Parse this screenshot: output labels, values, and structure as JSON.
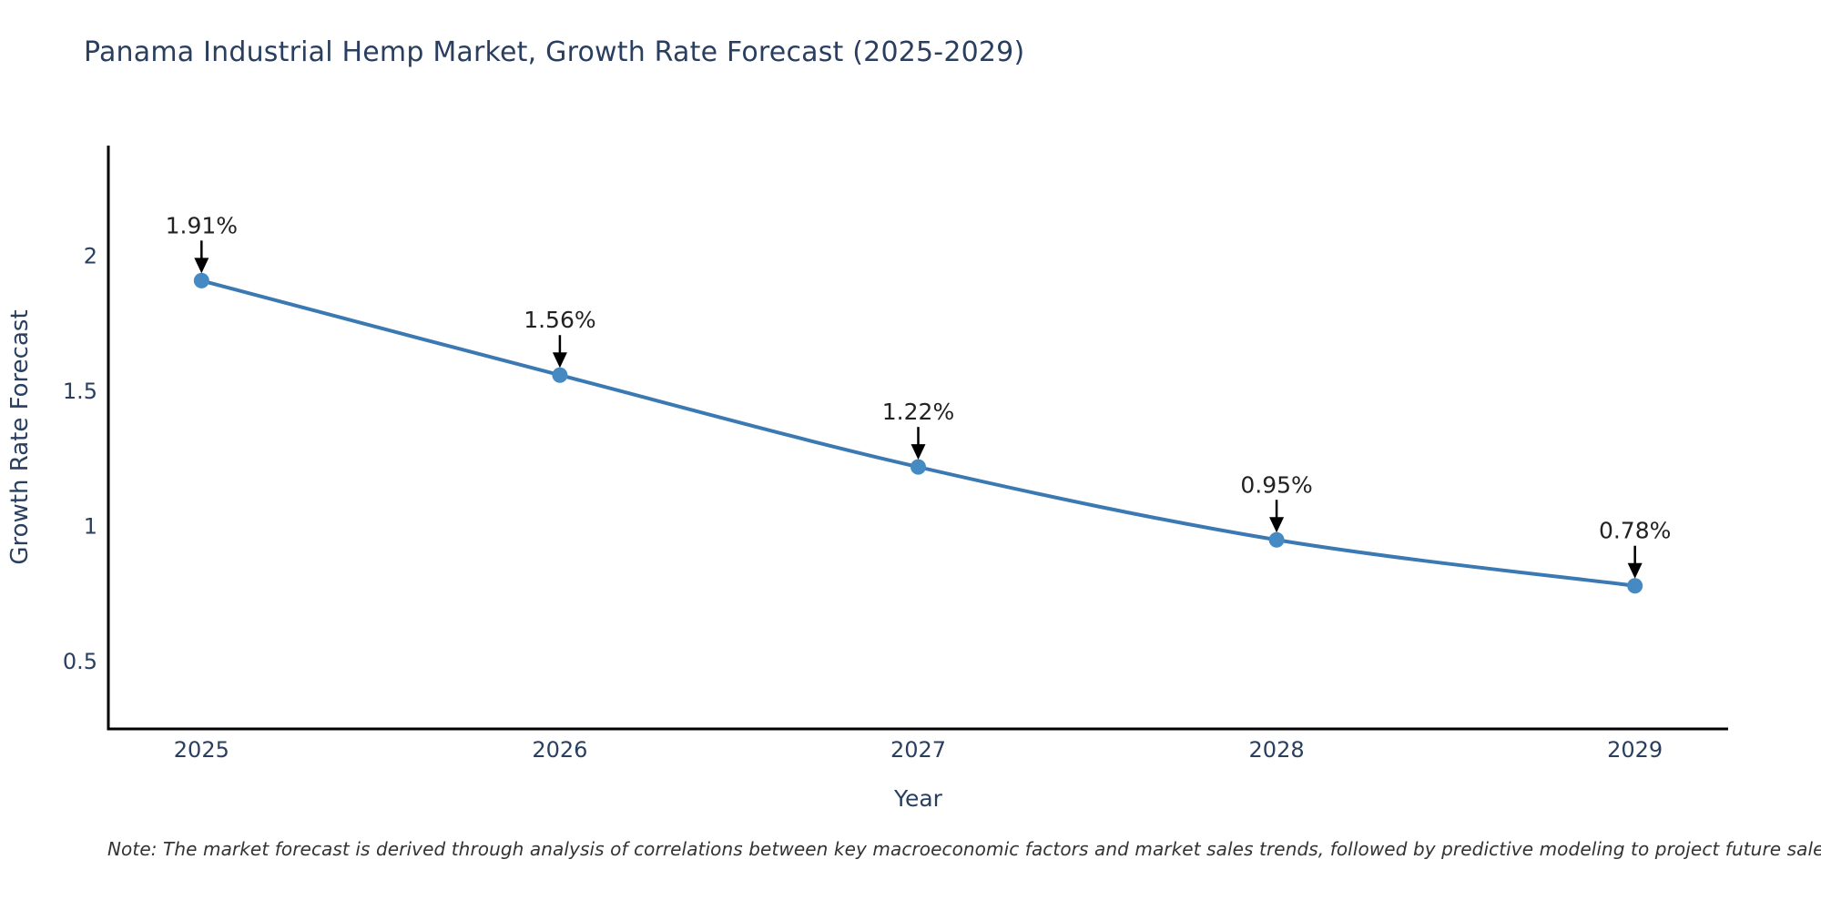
{
  "chart_data": {
    "type": "line",
    "title": "Panama Industrial Hemp Market, Growth Rate Forecast (2025-2029)",
    "xlabel": "Year",
    "ylabel": "Growth Rate Forecast",
    "x": [
      2025,
      2026,
      2027,
      2028,
      2029
    ],
    "values": [
      1.91,
      1.56,
      1.22,
      0.95,
      0.78
    ],
    "point_labels": [
      "1.91%",
      "1.56%",
      "1.22%",
      "0.95%",
      "0.78%"
    ],
    "x_tick_labels": [
      "2025",
      "2026",
      "2027",
      "2028",
      "2029"
    ],
    "y_tick_values": [
      0.5,
      1,
      1.5,
      2
    ],
    "y_tick_labels": [
      "0.5",
      "1",
      "1.5",
      "2"
    ],
    "xlim": [
      2024.74,
      2029.26
    ],
    "ylim": [
      0.25,
      2.41
    ],
    "grid": false,
    "legend": false,
    "line_color": "#3b79b3",
    "marker_color": "#458ac2",
    "axis_line_color": "#000000",
    "arrow_color": "#000000",
    "text_color": "#2a3f5f",
    "annotation_text_color": "#222222"
  },
  "note": {
    "text": "Note: The market forecast is derived through analysis of correlations between key macroeconomic factors and market sales trends, followed by predictive modeling to project future sales"
  }
}
